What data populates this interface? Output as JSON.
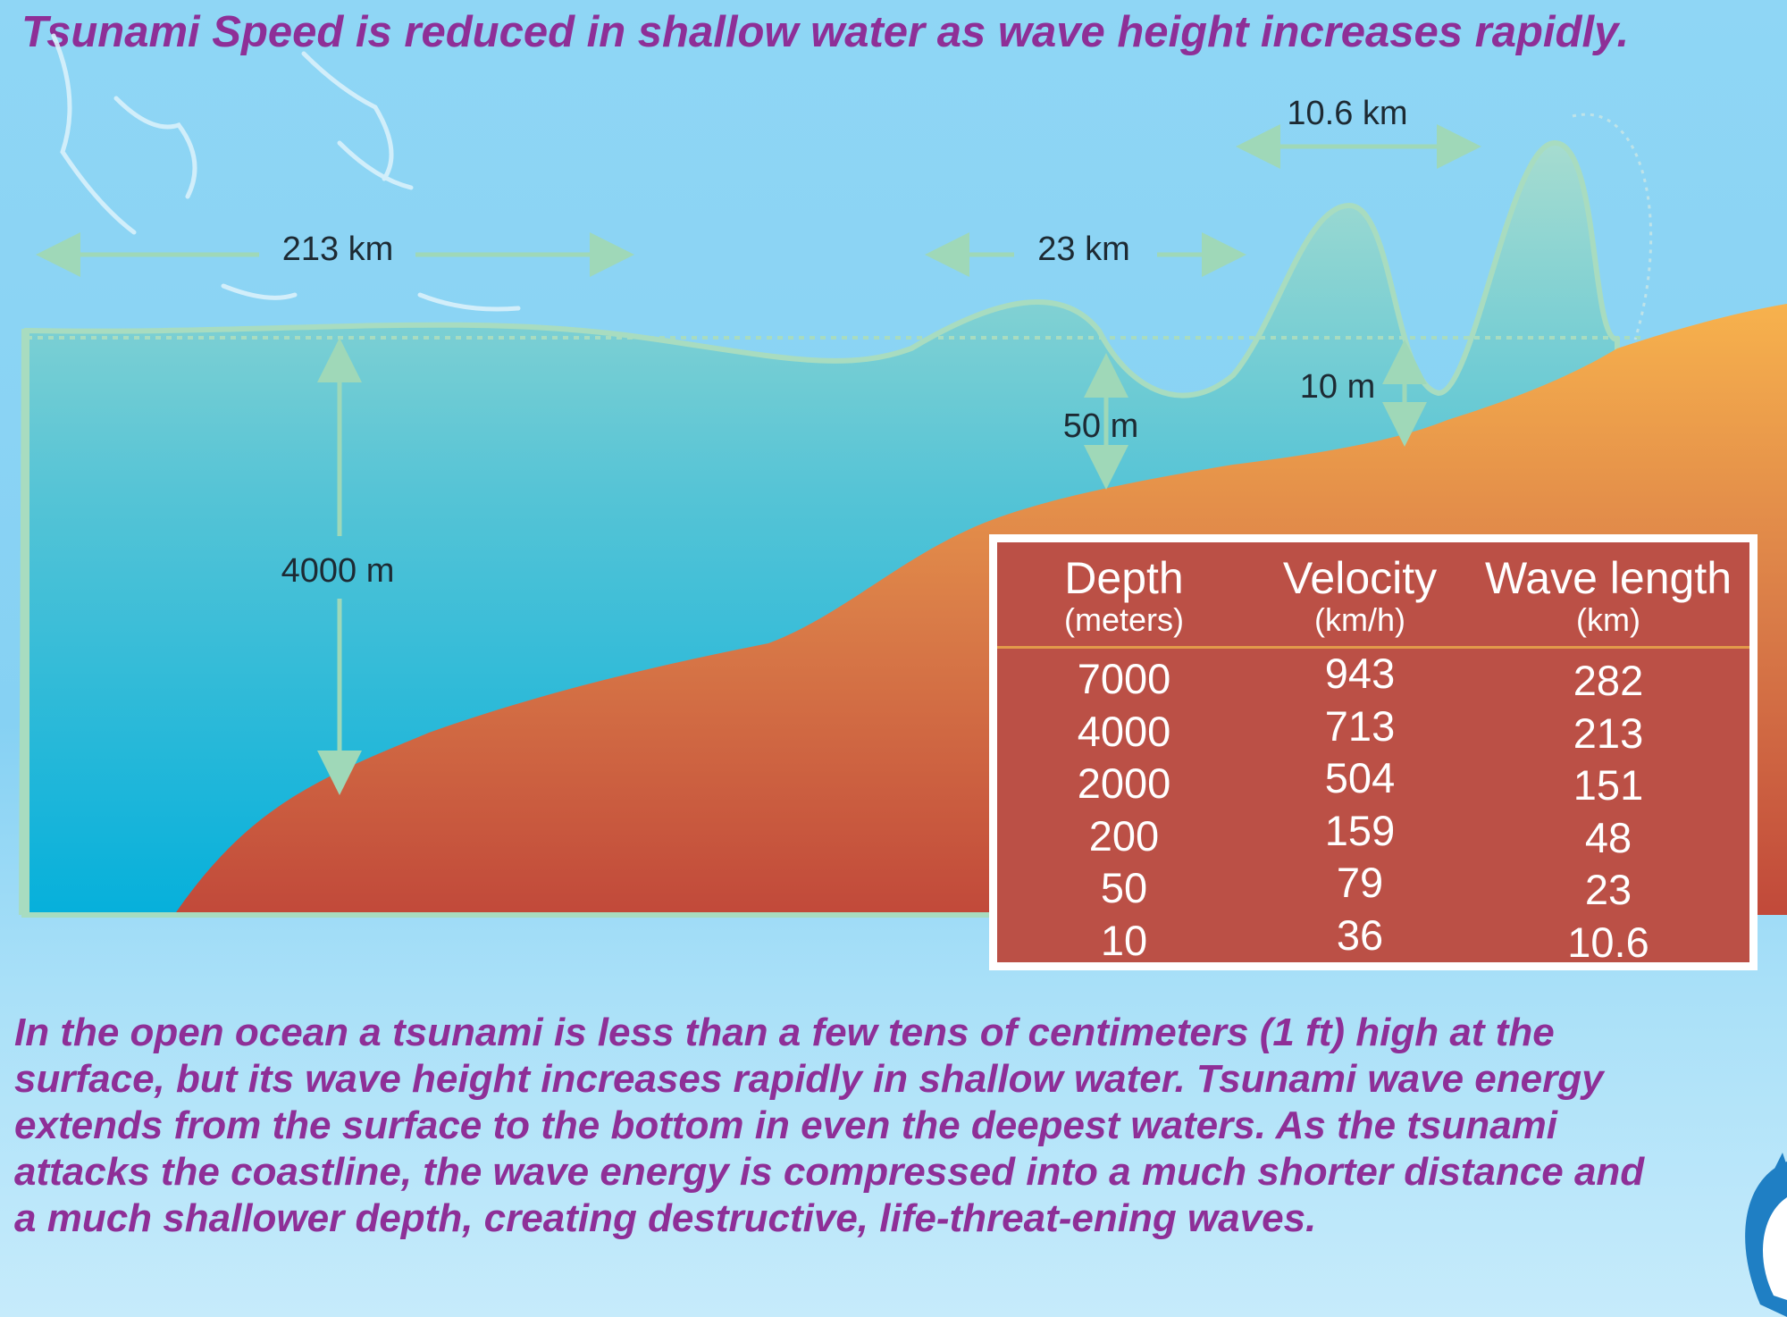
{
  "title": "Tsunami Speed is reduced in shallow water as wave height increases rapidly.",
  "labels": {
    "wavelength_213": "213 km",
    "wavelength_23": "23 km",
    "wavelength_10_6": "10.6 km",
    "depth_4000": "4000 m",
    "depth_50": "50 m",
    "depth_10": "10 m"
  },
  "table": {
    "headers": [
      {
        "title": "Depth",
        "unit": "(meters)"
      },
      {
        "title": "Velocity",
        "unit": "(km/h)"
      },
      {
        "title": "Wave length",
        "unit": "(km)"
      }
    ],
    "rows": [
      [
        "7000",
        "943",
        "282"
      ],
      [
        "4000",
        "713",
        "213"
      ],
      [
        "2000",
        "504",
        "151"
      ],
      [
        "200",
        "159",
        "48"
      ],
      [
        "50",
        "79",
        "23"
      ],
      [
        "10",
        "36",
        "10.6"
      ]
    ]
  },
  "description": "In the open ocean a tsunami is less than a few tens of centimeters (1 ft) high at the surface, but its wave height increases rapidly in shallow water. Tsunami wave energy extends from the surface to the bottom in even the deepest waters.  As the tsunami attacks the coastline, the wave energy is compressed into a much shorter distance and a much shallower depth, creating destructive, life-threat-ening waves.",
  "colors": {
    "title_text": "#8e2f97",
    "sky": "#8fd6f5",
    "water_top": "#9dd9d3",
    "water_bottom": "#0ab4dc",
    "seabed_top": "#f6b04c",
    "seabed_bottom": "#c04a38",
    "table_bg": "#bb5046",
    "table_rule": "#e39a4a",
    "arrow": "#9fd8b8"
  }
}
